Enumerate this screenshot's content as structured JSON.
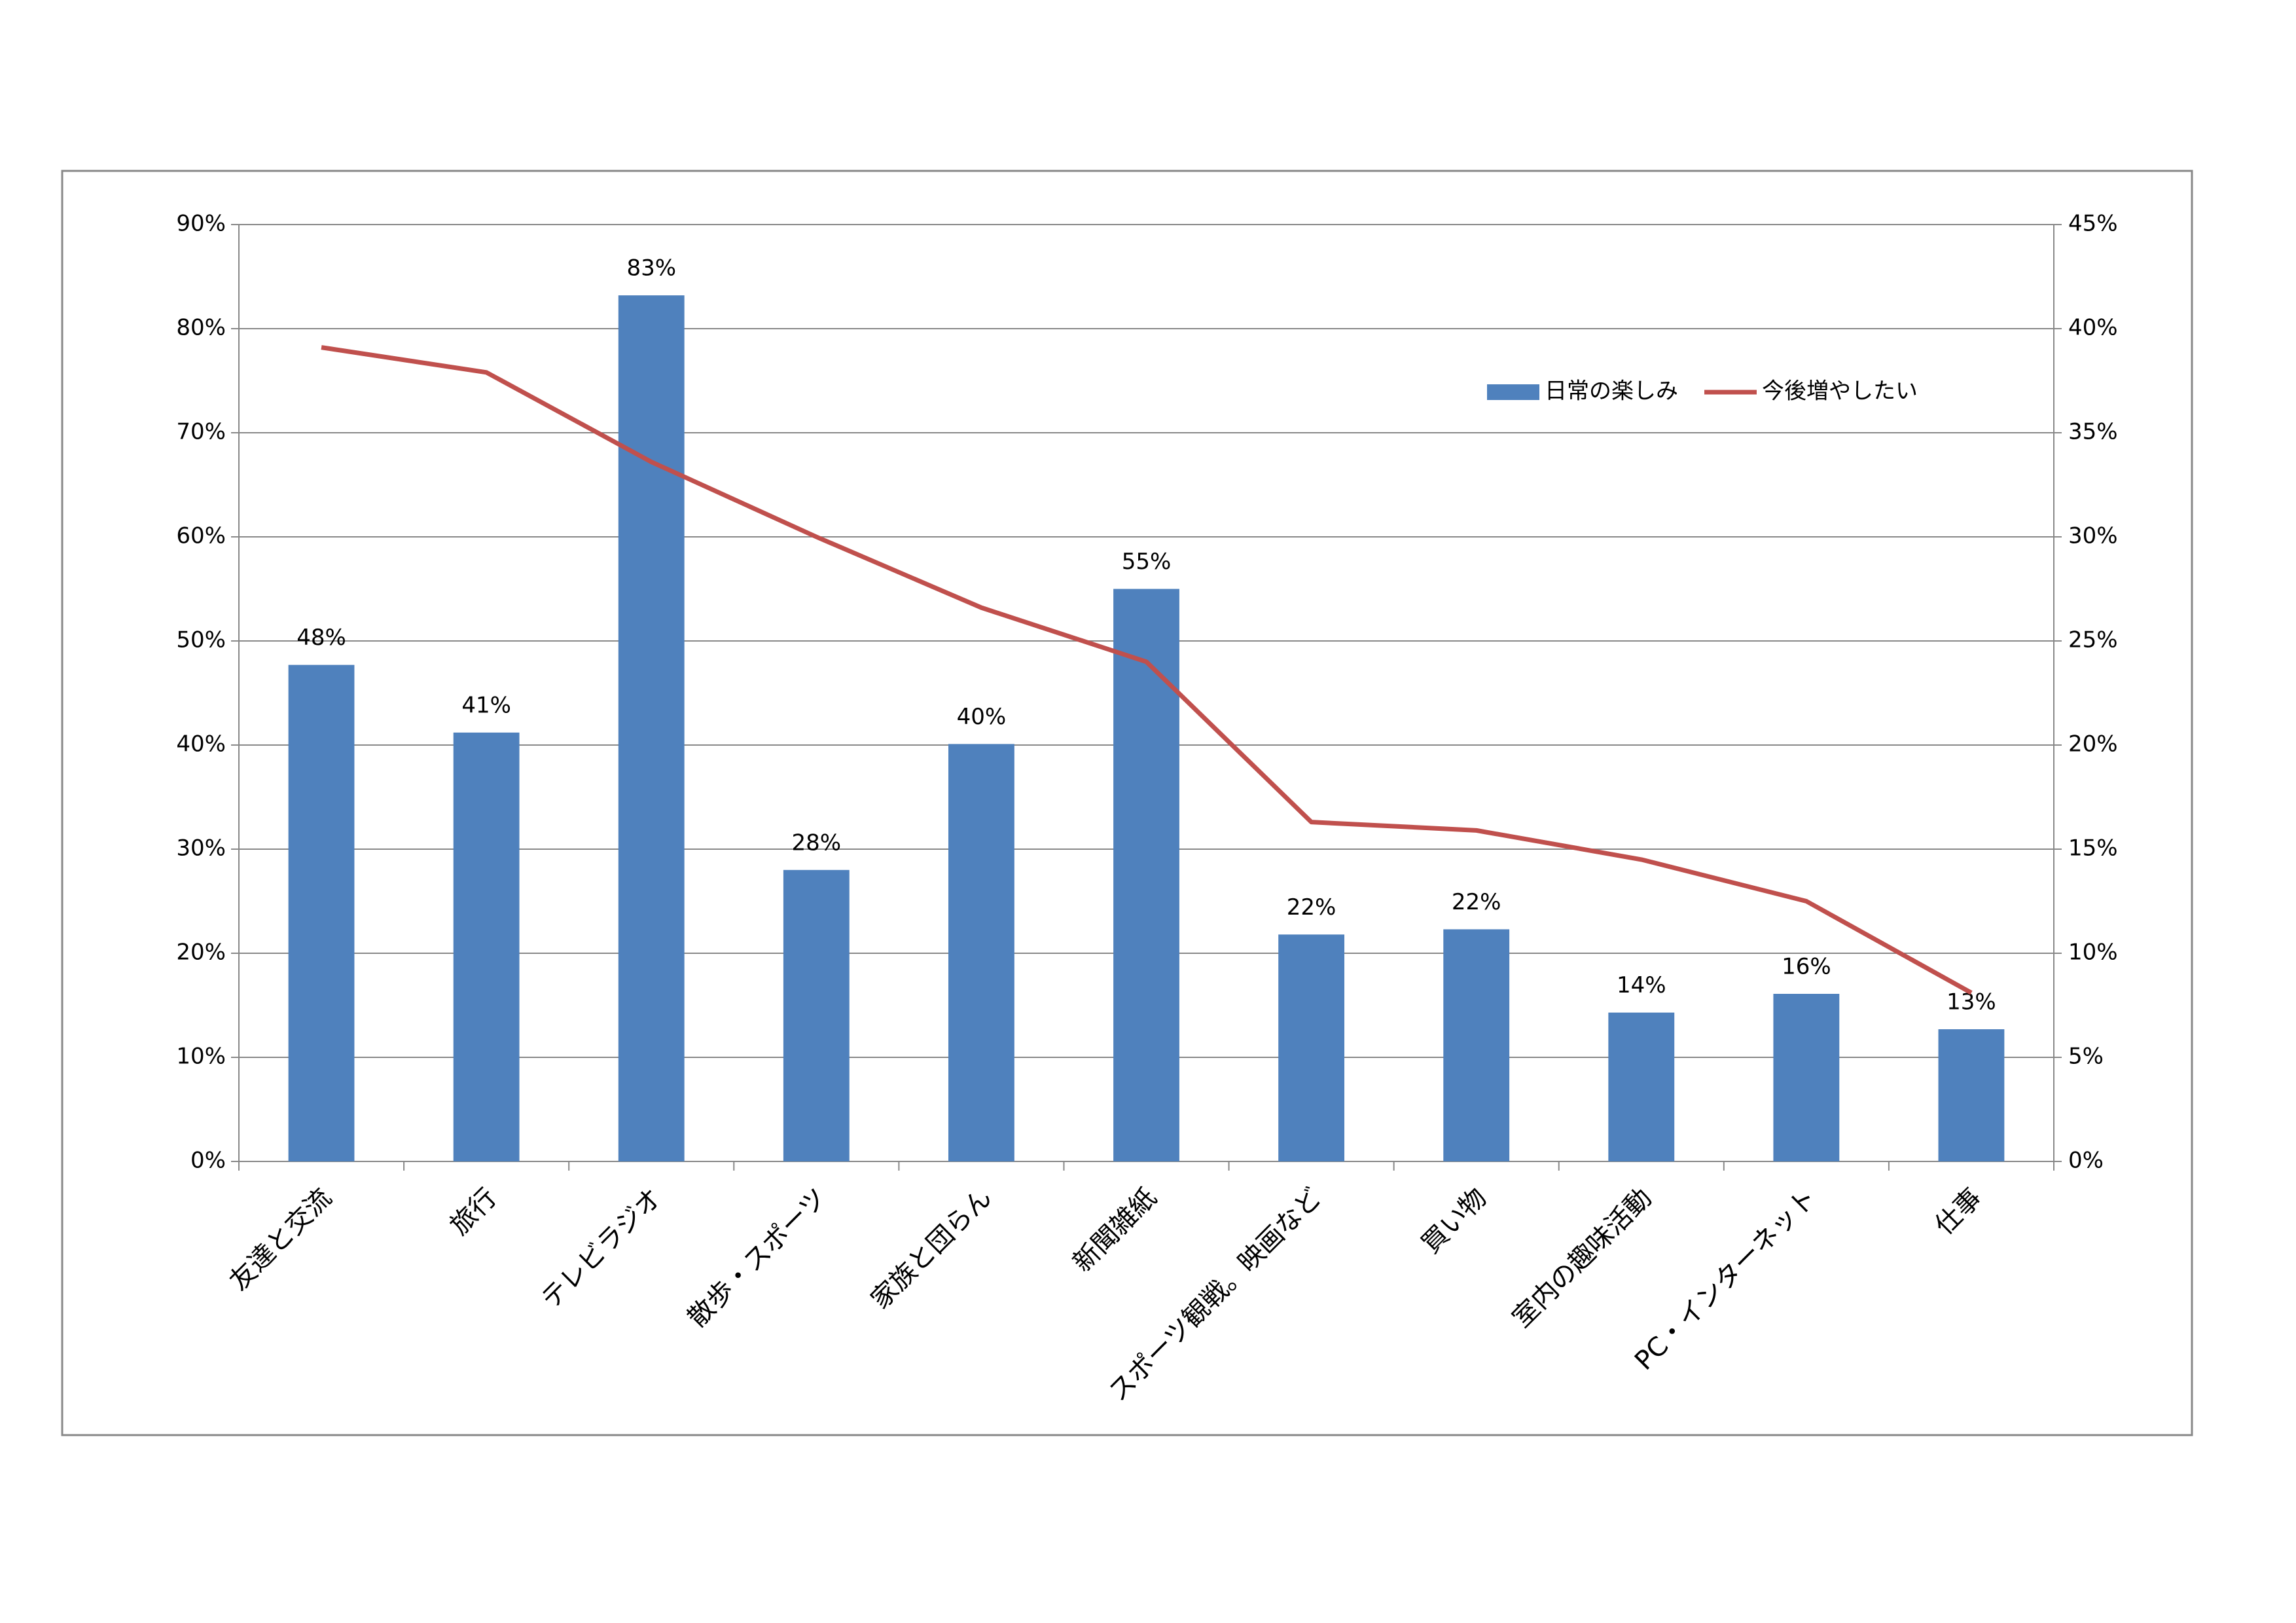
{
  "chart_data": {
    "type": "bar_line",
    "categories": [
      "友達と交流",
      "旅行",
      "テレビラジオ",
      "散歩・スポーツ",
      "家族と団らん",
      "新聞雑紙",
      "スポーツ観戦。映画など",
      "買い物",
      "室内の趣味活動",
      "PC・インターネット",
      "仕事"
    ],
    "series": [
      {
        "name": "日常の楽しみ",
        "type": "bar",
        "color": "#4f81bd",
        "values": [
          47.7,
          41.2,
          83.2,
          28,
          40.1,
          55,
          21.8,
          22.3,
          14.3,
          16.1,
          12.7
        ],
        "value_labels": [
          "48%",
          "41%",
          "83%",
          "28%",
          "40%",
          "55%",
          "22%",
          "22%",
          "14%",
          "16%",
          "13%"
        ]
      },
      {
        "name": "今後増やしたい",
        "type": "line",
        "axis": "y2",
        "color": "#c0504d",
        "values": [
          39.1,
          37.9,
          33.6,
          30,
          26.6,
          24,
          16.3,
          15.9,
          14.5,
          12.5,
          8.1
        ]
      }
    ],
    "ylim": [
      0,
      90
    ],
    "yticks": [
      {
        "value": 0,
        "label": "0%"
      },
      {
        "value": 10,
        "label": "10%"
      },
      {
        "value": 20,
        "label": "20%"
      },
      {
        "value": 30,
        "label": "30%"
      },
      {
        "value": 40,
        "label": "40%"
      },
      {
        "value": 50,
        "label": "50%"
      },
      {
        "value": 60,
        "label": "60%"
      },
      {
        "value": 70,
        "label": "70%"
      },
      {
        "value": 80,
        "label": "80%"
      },
      {
        "value": 90,
        "label": "90%"
      }
    ],
    "y2lim": [
      0,
      45
    ],
    "y2ticks": [
      {
        "value": 0,
        "label": "0%"
      },
      {
        "value": 5,
        "label": "5%"
      },
      {
        "value": 10,
        "label": "10%"
      },
      {
        "value": 15,
        "label": "15%"
      },
      {
        "value": 20,
        "label": "20%"
      },
      {
        "value": 25,
        "label": "25%"
      },
      {
        "value": 30,
        "label": "30%"
      },
      {
        "value": 35,
        "label": "35%"
      },
      {
        "value": 40,
        "label": "40%"
      },
      {
        "value": 45,
        "label": "45%"
      }
    ],
    "grid": true,
    "legend": "top-right"
  }
}
